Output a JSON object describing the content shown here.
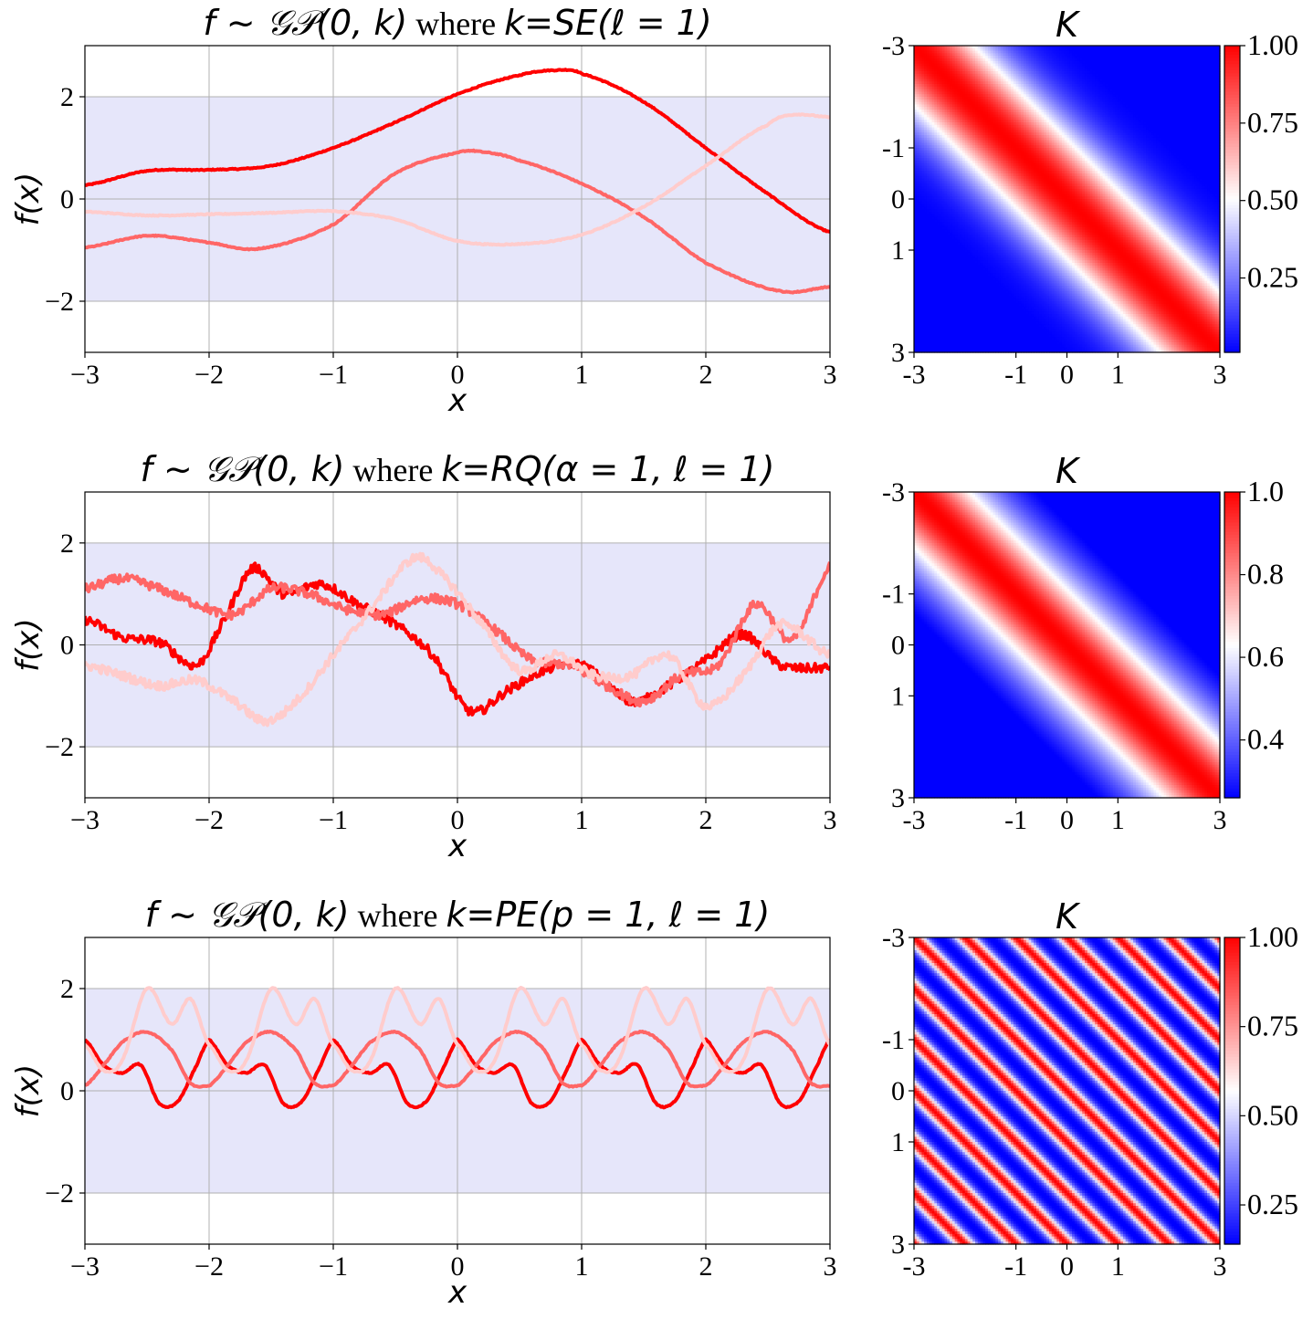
{
  "figure": {
    "colors": {
      "band_fill": "#e6e6fa",
      "sample_1": "#ff0000",
      "sample_2": "#ff6666",
      "sample_3": "#ffcccc",
      "colormap": "bwr"
    }
  },
  "chart_data": [
    {
      "type": "line",
      "title_parts": {
        "prefix": "f ~ ",
        "gp": "𝒢𝒫",
        "args": "(0, k)",
        "word": "where",
        "kernel": "k=SE(ℓ = 1)"
      },
      "xlabel": "x",
      "ylabel": "f(x)",
      "xlim": [
        -3,
        3
      ],
      "ylim": [
        -3,
        3
      ],
      "xticks": [
        "−3",
        "−2",
        "−1",
        "0",
        "1",
        "2",
        "3"
      ],
      "yticks": [
        "2",
        "0",
        "−2"
      ],
      "ytick_values": [
        2,
        0,
        -2
      ],
      "xtick_values": [
        -3,
        -2,
        -1,
        0,
        1,
        2,
        3
      ],
      "band": [
        -2,
        2
      ],
      "grid": true,
      "kind": "smooth",
      "series": [
        {
          "color_key": "sample_1",
          "x": [
            -3,
            -2.5,
            -2,
            -1.5,
            -1,
            -0.5,
            0,
            0.5,
            0.8,
            1,
            1.5,
            2,
            2.5,
            3
          ],
          "y": [
            0.27,
            0.55,
            0.57,
            0.65,
            1.0,
            1.5,
            2.05,
            2.42,
            2.52,
            2.45,
            1.9,
            1.0,
            0.1,
            -0.65
          ]
        },
        {
          "color_key": "sample_2",
          "x": [
            -3,
            -2.5,
            -2,
            -1.6,
            -1,
            -0.5,
            0,
            0.2,
            0.5,
            1,
            1.5,
            2,
            2.6,
            3
          ],
          "y": [
            -0.95,
            -0.72,
            -0.85,
            -0.97,
            -0.5,
            0.5,
            0.9,
            0.92,
            0.75,
            0.3,
            -0.35,
            -1.25,
            -1.8,
            -1.72
          ]
        },
        {
          "color_key": "sample_3",
          "x": [
            -3,
            -2.5,
            -2,
            -1.5,
            -1,
            -0.5,
            0,
            0.5,
            1,
            1.5,
            2,
            2.5,
            2.7,
            3
          ],
          "y": [
            -0.25,
            -0.32,
            -0.3,
            -0.27,
            -0.24,
            -0.4,
            -0.82,
            -0.88,
            -0.7,
            -0.15,
            0.65,
            1.45,
            1.65,
            1.6
          ]
        }
      ]
    },
    {
      "type": "heatmap",
      "title": "K",
      "kernel": "SE",
      "length_scale": 1,
      "xlim": [
        -3,
        3
      ],
      "ylim": [
        -3,
        3
      ],
      "xticks": [
        "-3",
        "-1",
        "0",
        "1",
        "3"
      ],
      "yticks": [
        "-3",
        "-1",
        "0",
        "1",
        "3"
      ],
      "colorbar": {
        "min": 0.01,
        "max": 1.0,
        "ticks": [
          "1.00",
          "0.75",
          "0.50",
          "0.25"
        ],
        "tick_values": [
          1.0,
          0.75,
          0.5,
          0.25
        ]
      }
    },
    {
      "type": "line",
      "title_parts": {
        "prefix": "f ~ ",
        "gp": "𝒢𝒫",
        "args": "(0, k)",
        "word": "where",
        "kernel": "k=RQ(α = 1, ℓ = 1)"
      },
      "xlabel": "x",
      "ylabel": "f(x)",
      "xlim": [
        -3,
        3
      ],
      "ylim": [
        -3,
        3
      ],
      "xticks": [
        "−3",
        "−2",
        "−1",
        "0",
        "1",
        "2",
        "3"
      ],
      "yticks": [
        "2",
        "0",
        "−2"
      ],
      "ytick_values": [
        2,
        0,
        -2
      ],
      "xtick_values": [
        -3,
        -2,
        -1,
        0,
        1,
        2,
        3
      ],
      "band": [
        -2,
        2
      ],
      "grid": true,
      "kind": "rough",
      "series": [
        {
          "color_key": "sample_1",
          "x": [
            -3,
            -2.7,
            -2.4,
            -2.1,
            -1.9,
            -1.65,
            -1.4,
            -1.1,
            -0.8,
            -0.5,
            -0.2,
            0.1,
            0.4,
            0.7,
            1.0,
            1.4,
            1.7,
            2.0,
            2.3,
            2.6,
            3
          ],
          "y": [
            0.5,
            0.15,
            0.05,
            -0.4,
            0.4,
            1.5,
            1.0,
            1.2,
            0.8,
            0.4,
            -0.2,
            -1.3,
            -0.9,
            -0.5,
            -0.4,
            -1.1,
            -0.8,
            -0.3,
            0.2,
            -0.4,
            -0.45
          ]
        },
        {
          "color_key": "sample_2",
          "x": [
            -3,
            -2.7,
            -2.4,
            -2.1,
            -1.8,
            -1.5,
            -1.2,
            -0.9,
            -0.6,
            -0.3,
            0,
            0.3,
            0.6,
            0.9,
            1.2,
            1.5,
            1.8,
            2.1,
            2.4,
            2.7,
            3
          ],
          "y": [
            1.1,
            1.3,
            1.1,
            0.8,
            0.6,
            1.1,
            1.0,
            0.7,
            0.6,
            0.9,
            0.8,
            0.3,
            -0.3,
            -0.4,
            -0.8,
            -1.1,
            -0.6,
            -0.4,
            0.8,
            0.1,
            1.55
          ]
        },
        {
          "color_key": "sample_3",
          "x": [
            -3,
            -2.7,
            -2.4,
            -2.1,
            -1.8,
            -1.55,
            -1.3,
            -1.0,
            -0.7,
            -0.35,
            -0.1,
            0.2,
            0.5,
            0.8,
            1.1,
            1.4,
            1.7,
            2.0,
            2.3,
            2.6,
            3
          ],
          "y": [
            -0.4,
            -0.6,
            -0.8,
            -0.7,
            -1.1,
            -1.5,
            -1.1,
            -0.2,
            0.7,
            1.7,
            1.3,
            0.4,
            -0.5,
            -0.2,
            -0.6,
            -0.6,
            -0.2,
            -1.2,
            -0.6,
            0.4,
            -0.2
          ]
        }
      ]
    },
    {
      "type": "heatmap",
      "title": "K",
      "kernel": "RQ",
      "alpha": 1,
      "length_scale": 1,
      "xlim": [
        -3,
        3
      ],
      "ylim": [
        -3,
        3
      ],
      "xticks": [
        "-3",
        "-1",
        "0",
        "1",
        "3"
      ],
      "yticks": [
        "-3",
        "-1",
        "0",
        "1",
        "3"
      ],
      "colorbar": {
        "min": 0.26,
        "max": 1.0,
        "ticks": [
          "1.0",
          "0.8",
          "0.6",
          "0.4"
        ],
        "tick_values": [
          1.0,
          0.8,
          0.6,
          0.4
        ]
      }
    },
    {
      "type": "line",
      "title_parts": {
        "prefix": "f ~ ",
        "gp": "𝒢𝒫",
        "args": "(0, k)",
        "word": "where",
        "kernel": "k=PE(p = 1, ℓ = 1)"
      },
      "xlabel": "x",
      "ylabel": "f(x)",
      "xlim": [
        -3,
        3
      ],
      "ylim": [
        -3,
        3
      ],
      "xticks": [
        "−3",
        "−2",
        "−1",
        "0",
        "1",
        "2",
        "3"
      ],
      "yticks": [
        "2",
        "0",
        "−2"
      ],
      "ytick_values": [
        2,
        0,
        -2
      ],
      "xtick_values": [
        -3,
        -2,
        -1,
        0,
        1,
        2,
        3
      ],
      "band": [
        -2,
        2
      ],
      "grid": true,
      "kind": "periodic",
      "period": 1,
      "series": [
        {
          "color_key": "sample_1",
          "x": [
            -3,
            -2.85,
            -2.7,
            -2.55,
            -2.4,
            -2.25,
            -2.1,
            -2.0
          ],
          "y": [
            1.0,
            0.5,
            0.35,
            0.5,
            -0.25,
            -0.2,
            0.5,
            1.0
          ]
        },
        {
          "color_key": "sample_2",
          "x": [
            -3,
            -2.85,
            -2.7,
            -2.5,
            -2.3,
            -2.15,
            -2.0
          ],
          "y": [
            0.1,
            0.5,
            0.95,
            1.15,
            0.8,
            0.15,
            0.1
          ]
        },
        {
          "color_key": "sample_3",
          "x": [
            -3,
            -2.85,
            -2.7,
            -2.5,
            -2.3,
            -2.15,
            -2.0
          ],
          "y": [
            0.9,
            0.4,
            0.6,
            2.0,
            1.3,
            1.8,
            0.9
          ]
        }
      ]
    },
    {
      "type": "heatmap",
      "title": "K",
      "kernel": "PE",
      "period": 1,
      "length_scale": 1,
      "xlim": [
        -3,
        3
      ],
      "ylim": [
        -3,
        3
      ],
      "xticks": [
        "-3",
        "-1",
        "0",
        "1",
        "3"
      ],
      "yticks": [
        "-3",
        "-1",
        "0",
        "1",
        "3"
      ],
      "colorbar": {
        "min": 0.14,
        "max": 1.0,
        "ticks": [
          "1.00",
          "0.75",
          "0.50",
          "0.25"
        ],
        "tick_values": [
          1.0,
          0.75,
          0.5,
          0.25
        ]
      }
    }
  ]
}
